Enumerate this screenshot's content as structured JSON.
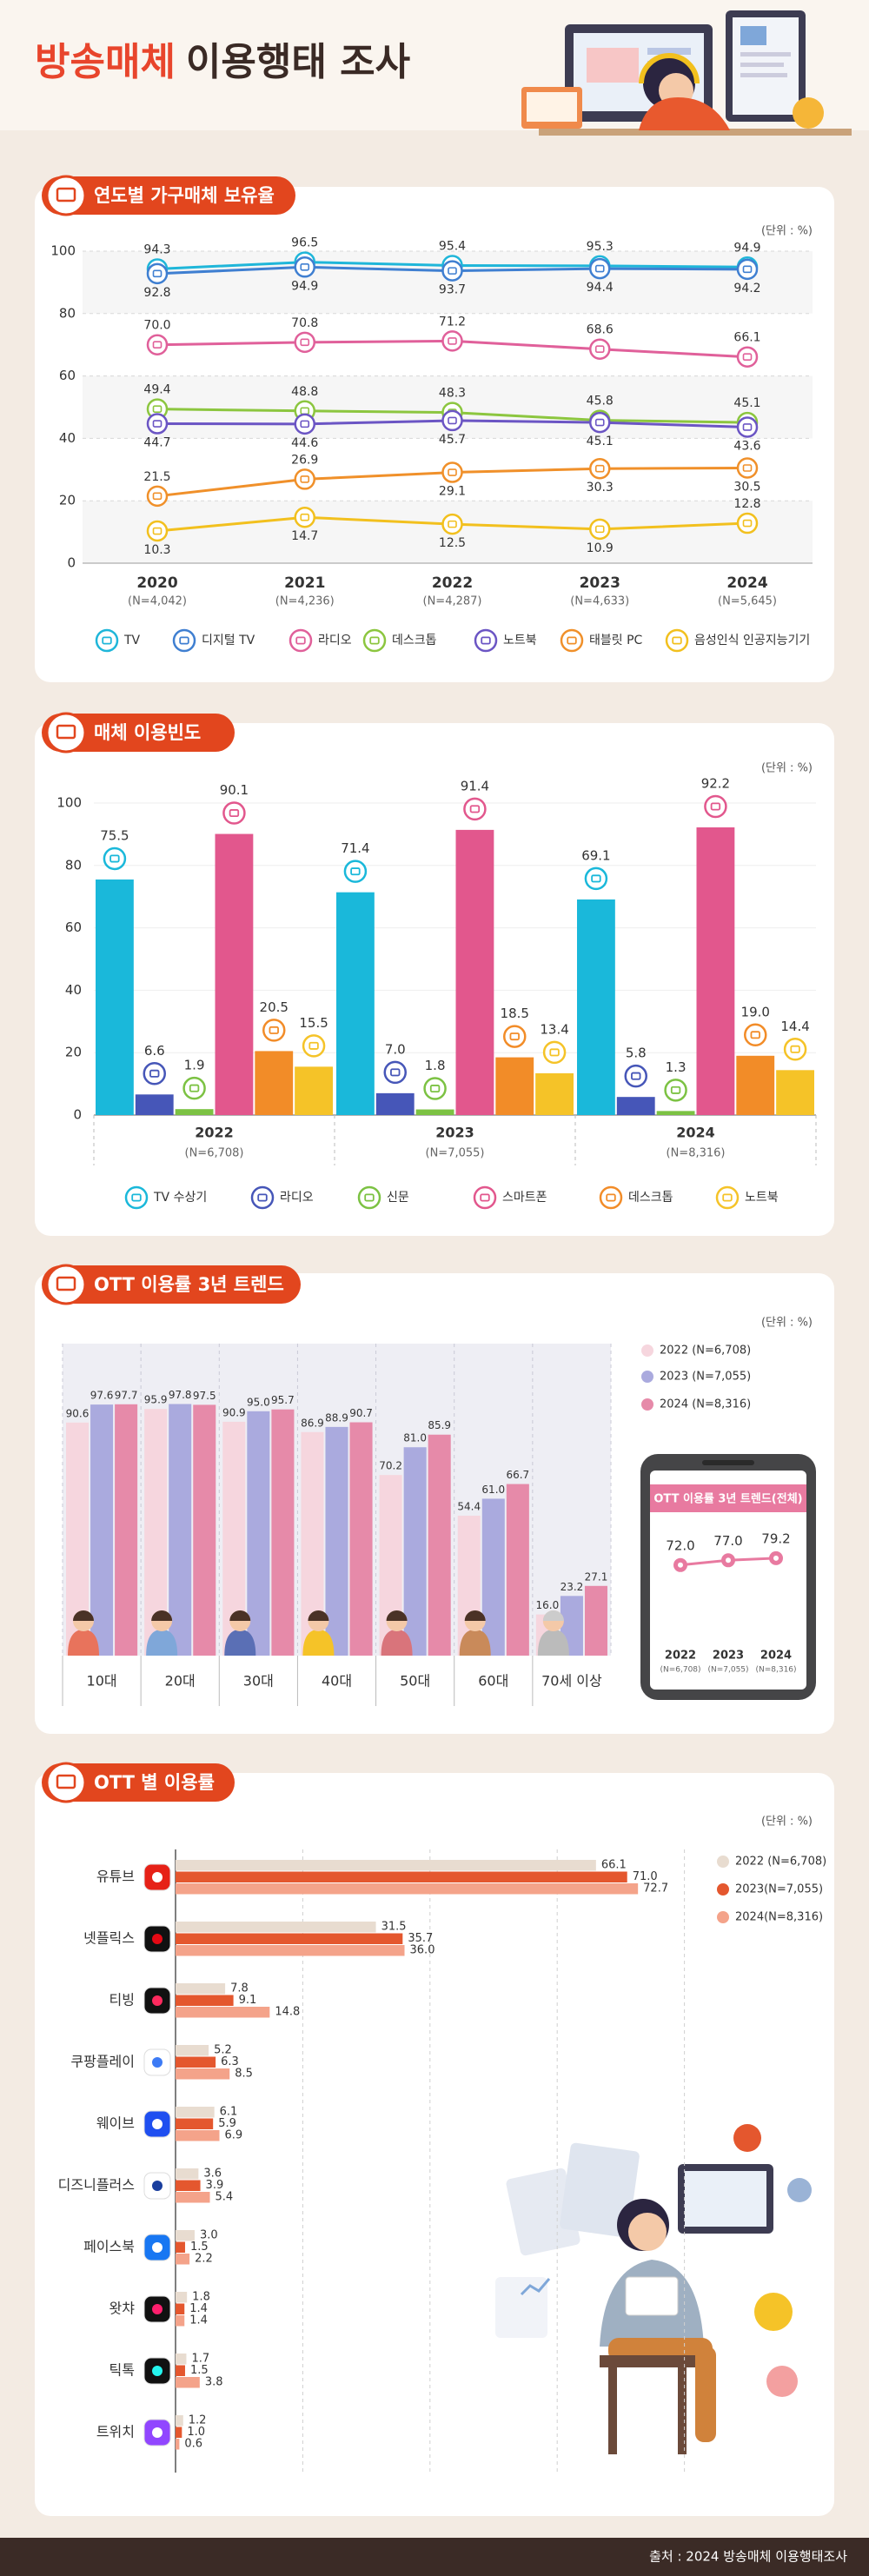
{
  "header": {
    "title_highlight": "방송매체",
    "title_rest": "이용행태 조사"
  },
  "chart_data": [
    {
      "type": "line",
      "title": "연도별 가구매체 보유율",
      "unit": "(단위 : %)",
      "categories": [
        "2020",
        "2021",
        "2022",
        "2023",
        "2024"
      ],
      "category_notes": [
        "(N=4,042)",
        "(N=4,236)",
        "(N=4,287)",
        "(N=4,633)",
        "(N=5,645)"
      ],
      "ylim": [
        0,
        100
      ],
      "yticks": [
        0,
        20,
        40,
        60,
        80,
        100
      ],
      "grid": true,
      "series": [
        {
          "name": "TV",
          "color": "#1fb6d9",
          "values": [
            94.3,
            96.5,
            95.4,
            95.3,
            94.9
          ],
          "value_labels": [
            "94.3",
            "96.5",
            "95.4",
            "95.3",
            "94.9"
          ]
        },
        {
          "name": "디지털 TV",
          "color": "#3f7fd1",
          "values": [
            92.8,
            94.9,
            93.7,
            94.4,
            94.2
          ],
          "value_labels": [
            "92.8",
            "94.9",
            "93.7",
            "94.4",
            "94.2"
          ]
        },
        {
          "name": "라디오",
          "color": "#e0609a",
          "values": [
            70.0,
            70.8,
            71.2,
            68.6,
            66.1
          ],
          "value_labels": [
            "70.0",
            "70.8",
            "71.2",
            "68.6",
            "66.1"
          ]
        },
        {
          "name": "데스크톱",
          "color": "#8cc63f",
          "values": [
            49.4,
            48.8,
            48.3,
            45.8,
            45.1
          ],
          "value_labels": [
            "49.4",
            "48.8",
            "48.3",
            "45.8",
            "45.1"
          ]
        },
        {
          "name": "노트북",
          "color": "#6b55c4",
          "values": [
            44.7,
            44.6,
            45.7,
            45.1,
            43.6
          ],
          "value_labels": [
            "44.7",
            "44.6",
            "45.7",
            "45.1",
            "43.6"
          ]
        },
        {
          "name": "태블릿 PC",
          "color": "#f0902a",
          "values": [
            21.5,
            26.9,
            29.1,
            30.3,
            30.5
          ],
          "value_labels": [
            "21.5",
            "26.9",
            "29.1",
            "30.3",
            "30.5"
          ]
        },
        {
          "name": "음성인식 인공지능기기",
          "color": "#f2c01e",
          "values": [
            10.3,
            14.7,
            12.5,
            10.9,
            12.8
          ],
          "value_labels": [
            "10.3",
            "14.7",
            "12.5",
            "10.9",
            "12.8"
          ]
        }
      ]
    },
    {
      "type": "bar",
      "title": "매체 이용빈도",
      "unit": "(단위 : %)",
      "categories": [
        "2022",
        "2023",
        "2024"
      ],
      "category_notes": [
        "(N=6,708)",
        "(N=7,055)",
        "(N=8,316)"
      ],
      "ylim": [
        0,
        100
      ],
      "yticks": [
        0,
        20,
        40,
        60,
        80,
        100
      ],
      "grid": true,
      "series": [
        {
          "name": "TV 수상기",
          "color": "#1ab8da",
          "values": [
            75.5,
            71.4,
            69.1
          ],
          "value_labels": [
            "75.5",
            "71.4",
            "69.1"
          ]
        },
        {
          "name": "라디오",
          "color": "#4656b8",
          "values": [
            6.6,
            7.0,
            5.8
          ],
          "value_labels": [
            "6.6",
            "7.0",
            "5.8"
          ]
        },
        {
          "name": "신문",
          "color": "#7cc243",
          "values": [
            1.9,
            1.8,
            1.3
          ],
          "value_labels": [
            "1.9",
            "1.8",
            "1.3"
          ]
        },
        {
          "name": "스마트폰",
          "color": "#e2578d",
          "values": [
            90.1,
            91.4,
            92.2
          ],
          "value_labels": [
            "90.1",
            "91.4",
            "92.2"
          ]
        },
        {
          "name": "데스크톱",
          "color": "#f28c28",
          "values": [
            20.5,
            18.5,
            19.0
          ],
          "value_labels": [
            "20.5",
            "18.5",
            "19.0"
          ]
        },
        {
          "name": "노트북",
          "color": "#f5c328",
          "values": [
            15.5,
            13.4,
            14.4
          ],
          "value_labels": [
            "15.5",
            "13.4",
            "14.4"
          ]
        }
      ]
    },
    {
      "type": "bar",
      "title": "OTT 이용률 3년 트렌드",
      "unit": "(단위 : %)",
      "categories": [
        "10대",
        "20대",
        "30대",
        "40대",
        "50대",
        "60대",
        "70세 이상"
      ],
      "ylim": [
        0,
        100
      ],
      "series": [
        {
          "name": "2022 (N=6,708)",
          "color": "#f6d6de",
          "values": [
            90.6,
            95.9,
            90.9,
            86.9,
            70.2,
            54.4,
            16.0
          ],
          "value_labels": [
            "90.6",
            "95.9",
            "90.9",
            "86.9",
            "70.2",
            "54.4",
            "16.0"
          ]
        },
        {
          "name": "2023 (N=7,055)",
          "color": "#aaaade",
          "values": [
            97.6,
            97.8,
            95.0,
            88.9,
            81.0,
            61.0,
            23.2
          ],
          "value_labels": [
            "97.6",
            "97.8",
            "95.0",
            "88.9",
            "81.0",
            "61.0",
            "23.2"
          ]
        },
        {
          "name": "2024 (N=8,316)",
          "color": "#e68aa9",
          "values": [
            97.7,
            97.5,
            95.7,
            90.7,
            85.9,
            66.7,
            27.1
          ],
          "value_labels": [
            "97.7",
            "97.5",
            "95.7",
            "90.7",
            "85.9",
            "66.7",
            "27.1"
          ]
        }
      ]
    },
    {
      "type": "line",
      "title": "OTT 이용률 3년 트렌드(전체)",
      "categories": [
        "2022",
        "2023",
        "2024"
      ],
      "category_notes": [
        "(N=6,708)",
        "(N=7,055)",
        "(N=8,316)"
      ],
      "ylim": [
        0,
        100
      ],
      "color": "#e87aa0",
      "values": [
        72.0,
        77.0,
        79.2
      ],
      "value_labels": [
        "72.0",
        "77.0",
        "79.2"
      ]
    },
    {
      "type": "barh",
      "title": "OTT 별 이용률",
      "unit": "(단위 : %)",
      "categories": [
        "유튜브",
        "넷플릭스",
        "티빙",
        "쿠팡플레이",
        "웨이브",
        "디즈니플러스",
        "페이스북",
        "왓챠",
        "틱톡",
        "트위치"
      ],
      "xlim": [
        0,
        100
      ],
      "xgrid": [
        20,
        40,
        60,
        80
      ],
      "series": [
        {
          "name": "2022 (N=6,708)",
          "color": "#e8dcd0",
          "values": [
            66.1,
            31.5,
            7.8,
            5.2,
            6.1,
            3.6,
            3.0,
            1.8,
            1.7,
            1.2
          ],
          "value_labels": [
            "66.1",
            "31.5",
            "7.8",
            "5.2",
            "6.1",
            "3.6",
            "3.0",
            "1.8",
            "1.7",
            "1.2"
          ]
        },
        {
          "name": "2023(N=7,055)",
          "color": "#e4572e",
          "values": [
            71.0,
            35.7,
            9.1,
            6.3,
            5.9,
            3.9,
            1.5,
            1.4,
            1.5,
            1.0
          ],
          "value_labels": [
            "71.0",
            "35.7",
            "9.1",
            "6.3",
            "5.9",
            "3.9",
            "1.5",
            "1.4",
            "1.5",
            "1.0"
          ]
        },
        {
          "name": "2024(N=8,316)",
          "color": "#f4a38a",
          "values": [
            72.7,
            36.0,
            14.8,
            8.5,
            6.9,
            5.4,
            2.2,
            1.4,
            3.8,
            0.6
          ],
          "value_labels": [
            "72.7",
            "36.0",
            "14.8",
            "8.5",
            "6.9",
            "5.4",
            "2.2",
            "1.4",
            "3.8",
            "0.6"
          ]
        }
      ]
    }
  ],
  "footer": {
    "source": "출처 : 2024 방송매체 이용행태조사"
  }
}
